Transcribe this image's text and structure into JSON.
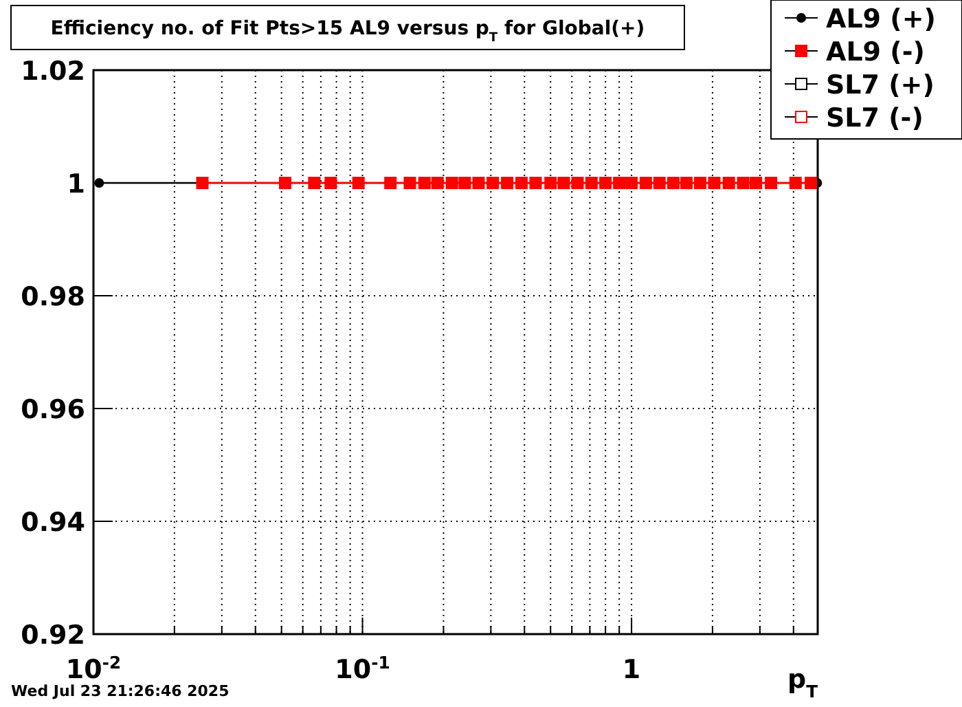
{
  "chart_data": {
    "type": "line",
    "title": "Efficiency no. of Fit Pts>15 AL9 versus p$_{T}$ for Global(+)",
    "xlabel": "p$_{T}$",
    "annotations": [
      "Wed Jul 23 21:26:46 2025"
    ],
    "log": "x",
    "xlim": [
      0.01,
      4.92
    ],
    "ylim": [
      0.92,
      1.02
    ],
    "xticks": [
      {
        "value": 0.01,
        "label": "10$^{-2}$"
      },
      {
        "value": 0.02,
        "label": null
      },
      {
        "value": 0.03,
        "label": null
      },
      {
        "value": 0.04,
        "label": null
      },
      {
        "value": 0.05,
        "label": null
      },
      {
        "value": 0.06,
        "label": null
      },
      {
        "value": 0.07,
        "label": null
      },
      {
        "value": 0.08,
        "label": null
      },
      {
        "value": 0.09,
        "label": null
      },
      {
        "value": 0.1,
        "label": "10$^{-1}$"
      },
      {
        "value": 0.2,
        "label": null
      },
      {
        "value": 0.3,
        "label": null
      },
      {
        "value": 0.4,
        "label": null
      },
      {
        "value": 0.5,
        "label": null
      },
      {
        "value": 0.6,
        "label": null
      },
      {
        "value": 0.7,
        "label": null
      },
      {
        "value": 0.8,
        "label": null
      },
      {
        "value": 0.9,
        "label": null
      },
      {
        "value": 1,
        "label": "1"
      },
      {
        "value": 2,
        "label": null
      },
      {
        "value": 3,
        "label": null
      },
      {
        "value": 4,
        "label": null
      }
    ],
    "yticks": [
      0.92,
      0.94,
      0.96,
      0.98,
      1,
      1.02
    ],
    "grid": true,
    "legend": "top right",
    "series": [
      {
        "name": "AL9 (+)",
        "color": "#000000",
        "marker": "circle",
        "line_style": "solid",
        "x": [
          0.0105,
          4.9
        ],
        "values": [
          1,
          1
        ]
      },
      {
        "name": "AL9 (-)",
        "color": "#ff0000",
        "marker": "square",
        "line_style": "solid",
        "x": [
          0.0254,
          0.0516,
          0.0662,
          0.0762,
          0.0966,
          0.127,
          0.15,
          0.17,
          0.19,
          0.215,
          0.24,
          0.27,
          0.305,
          0.345,
          0.39,
          0.44,
          0.5,
          0.56,
          0.63,
          0.71,
          0.8,
          0.9,
          1.0,
          1.13,
          1.27,
          1.43,
          1.6,
          1.8,
          2.03,
          2.3,
          2.6,
          2.9,
          3.3,
          4.07,
          4.64
        ],
        "values": [
          1,
          1,
          1,
          1,
          1,
          1,
          1,
          1,
          1,
          1,
          1,
          1,
          1,
          1,
          1,
          1,
          1,
          1,
          1,
          1,
          1,
          1,
          1,
          1,
          1,
          1,
          1,
          1,
          1,
          1,
          1,
          1,
          1,
          1,
          1
        ]
      },
      {
        "name": "SL7 (+)",
        "color": "#000000",
        "marker": "square_open",
        "line_style": "solid"
      },
      {
        "name": "SL7 (-)",
        "color": "#ff0000",
        "marker": "square_open",
        "line_style": "solid"
      }
    ]
  }
}
